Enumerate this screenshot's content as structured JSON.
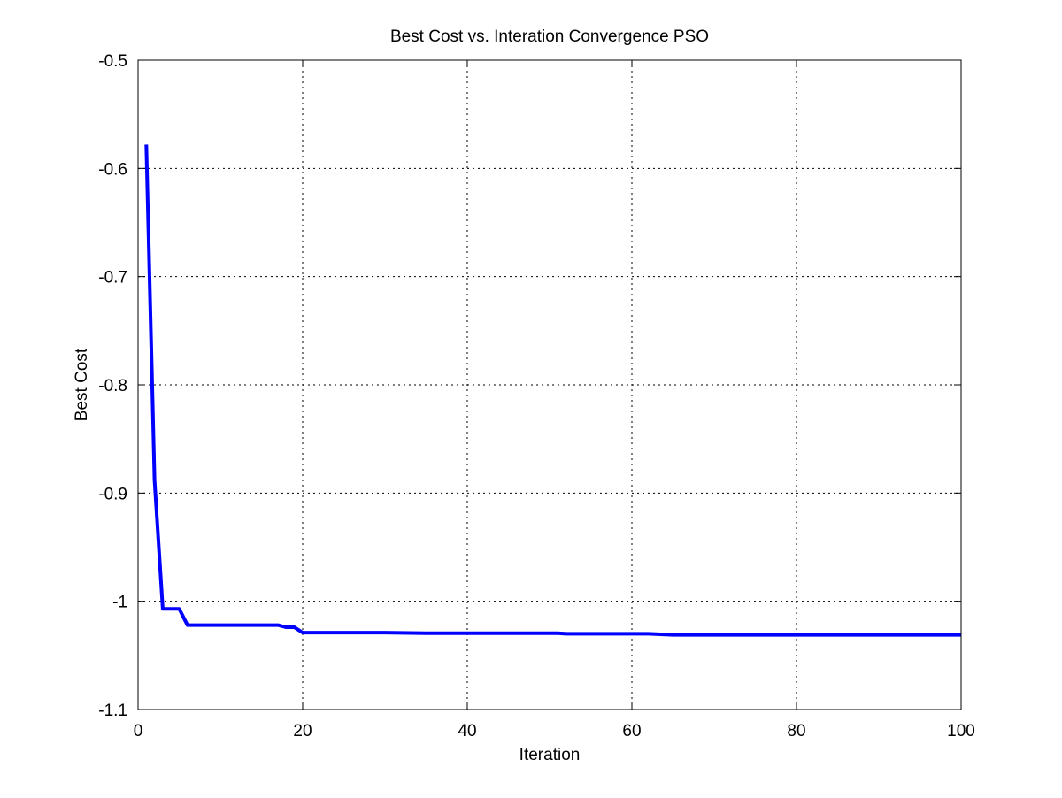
{
  "chart_data": {
    "type": "line",
    "title": "Best Cost vs. Interation Convergence PSO",
    "xlabel": "Iteration",
    "ylabel": "Best Cost",
    "xlim": [
      0,
      100
    ],
    "ylim": [
      -1.1,
      -0.5
    ],
    "xticks": [
      0,
      20,
      40,
      60,
      80,
      100
    ],
    "xtick_labels": [
      "0",
      "20",
      "40",
      "60",
      "80",
      "100"
    ],
    "yticks": [
      -1.1,
      -1.0,
      -0.9,
      -0.8,
      -0.7,
      -0.6,
      -0.5
    ],
    "ytick_labels": [
      "-1.1",
      "-1",
      "-0.9",
      "-0.8",
      "-0.7",
      "-0.6",
      "-0.5"
    ],
    "grid": true,
    "legend": "none",
    "series": [
      {
        "color": "#0000ff",
        "x": [
          1,
          2,
          3,
          4,
          5,
          6,
          7,
          8,
          9,
          10,
          11,
          12,
          13,
          14,
          15,
          16,
          17,
          18,
          19,
          20,
          25,
          30,
          35,
          40,
          45,
          50,
          51,
          52,
          55,
          60,
          62,
          65,
          70,
          75,
          80,
          85,
          90,
          95,
          100
        ],
        "y": [
          -0.578,
          -0.888,
          -1.007,
          -1.007,
          -1.007,
          -1.022,
          -1.022,
          -1.022,
          -1.022,
          -1.022,
          -1.022,
          -1.022,
          -1.022,
          -1.022,
          -1.022,
          -1.022,
          -1.022,
          -1.024,
          -1.024,
          -1.029,
          -1.029,
          -1.029,
          -1.0295,
          -1.0295,
          -1.0295,
          -1.0295,
          -1.0295,
          -1.03,
          -1.03,
          -1.03,
          -1.03,
          -1.031,
          -1.031,
          -1.031,
          -1.031,
          -1.031,
          -1.031,
          -1.031,
          -1.031
        ]
      }
    ]
  }
}
